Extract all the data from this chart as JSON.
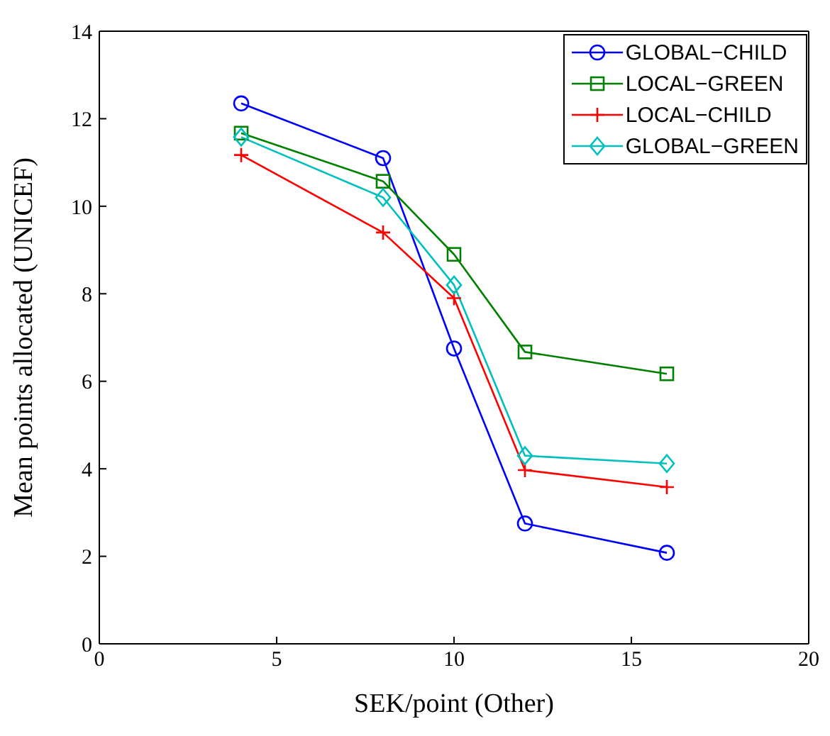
{
  "chart_data": {
    "type": "line",
    "xlabel": "SEK/point (Other)",
    "ylabel": "Mean points allocated (UNICEF)",
    "x": [
      4,
      8,
      10,
      12,
      16
    ],
    "series": [
      {
        "name": "GLOBAL−CHILD",
        "color": "#0000ff",
        "marker": "circle",
        "values": [
          12.35,
          11.1,
          6.75,
          2.75,
          2.08
        ]
      },
      {
        "name": "LOCAL−GREEN",
        "color": "#008000",
        "marker": "square",
        "values": [
          11.67,
          10.57,
          8.9,
          6.67,
          6.17
        ]
      },
      {
        "name": "LOCAL−CHILD",
        "color": "#ff0000",
        "marker": "cross",
        "values": [
          11.17,
          9.4,
          7.9,
          3.97,
          3.58
        ]
      },
      {
        "name": "GLOBAL−GREEN",
        "color": "#00bfbf",
        "marker": "diamond",
        "values": [
          11.58,
          10.2,
          8.2,
          4.3,
          4.12
        ]
      }
    ],
    "xlim": [
      0,
      20
    ],
    "xticks": [
      0,
      5,
      10,
      15,
      20
    ],
    "ylim": [
      0,
      14
    ],
    "yticks": [
      0,
      2,
      4,
      6,
      8,
      10,
      12,
      14
    ],
    "grid": false,
    "legend": "top right"
  }
}
